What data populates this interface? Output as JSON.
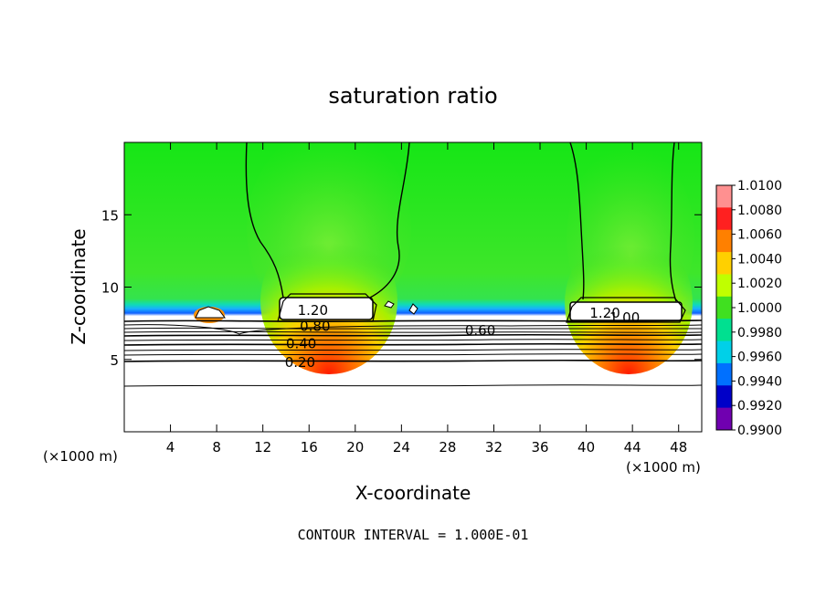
{
  "chart_data": {
    "type": "heatmap",
    "title": "saturation ratio",
    "xlabel": "X-coordinate",
    "ylabel": "Z-coordinate",
    "x_unit_left": "(×1000 m)",
    "x_unit_right": "(×1000 m)",
    "xlim": [
      0,
      50
    ],
    "ylim": [
      0,
      20
    ],
    "x_ticks": [
      4,
      8,
      12,
      16,
      20,
      24,
      28,
      32,
      36,
      40,
      44,
      48
    ],
    "x_tick_labels": [
      "4",
      "8",
      "12",
      "16",
      "20",
      "24",
      "28",
      "32",
      "36",
      "40",
      "44",
      "48"
    ],
    "y_ticks": [
      5,
      10,
      15
    ],
    "y_tick_labels": [
      "5",
      "10",
      "15"
    ],
    "colorbar": {
      "levels": [
        "1.0100",
        "1.0080",
        "1.0060",
        "1.0040",
        "1.0020",
        "1.0000",
        "0.9980",
        "0.9960",
        "0.9940",
        "0.9920",
        "0.9900"
      ],
      "colors": [
        "#ff9090",
        "#ff2020",
        "#ff8000",
        "#ffd000",
        "#c0ff00",
        "#40e020",
        "#00e090",
        "#00d0e8",
        "#0070ff",
        "#0000c8",
        "#7000b0"
      ]
    },
    "contour_labels": [
      {
        "text": "1.20",
        "x": 15.0,
        "z": 8.4
      },
      {
        "text": "0.80",
        "x": 15.2,
        "z": 7.3
      },
      {
        "text": "0.40",
        "x": 14.0,
        "z": 6.1
      },
      {
        "text": "0.20",
        "x": 13.9,
        "z": 4.8
      },
      {
        "text": "0.60",
        "x": 29.5,
        "z": 7.0
      },
      {
        "text": "1.20",
        "x": 40.3,
        "z": 8.2
      },
      {
        "text": "1.00",
        "x": 42.0,
        "z": 7.9
      }
    ],
    "contour_interval_text": "CONTOUR INTERVAL = 1.000E-01"
  }
}
